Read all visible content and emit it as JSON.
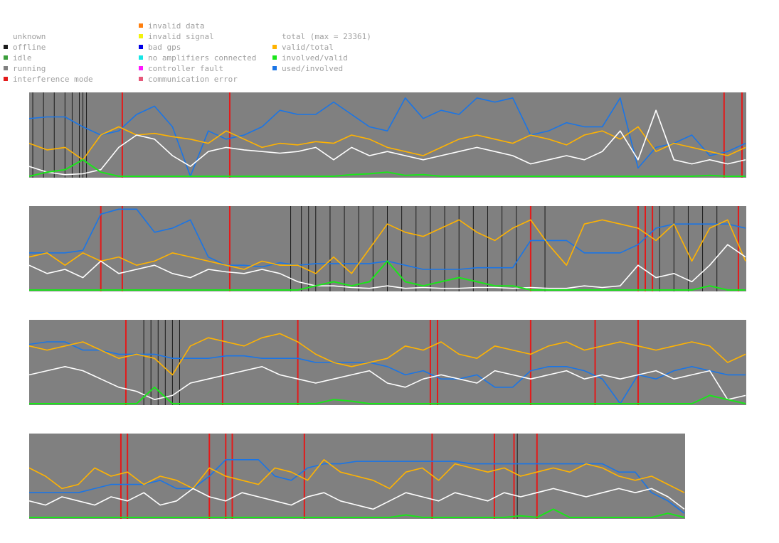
{
  "legend": {
    "status": [
      {
        "label": "unknown",
        "color": "#ffffff"
      },
      {
        "label": "offline",
        "color": "#1a1a1a"
      },
      {
        "label": "idle",
        "color": "#3c9e3c"
      },
      {
        "label": "running",
        "color": "#808080"
      },
      {
        "label": "interference mode",
        "color": "#e31a1a"
      }
    ],
    "errors": [
      {
        "label": "invalid data",
        "color": "#ff7f0e"
      },
      {
        "label": "invalid signal",
        "color": "#f2f20d"
      },
      {
        "label": "bad gps",
        "color": "#0000e6"
      },
      {
        "label": "no amplifiers connected",
        "color": "#17e6e6"
      },
      {
        "label": "controller fault",
        "color": "#ff17ff"
      },
      {
        "label": "communication error",
        "color": "#e6587a"
      }
    ],
    "ratios": [
      {
        "label": "total (max = 23361)",
        "color": "#ffffff"
      },
      {
        "label": "valid/total",
        "color": "#ffb300"
      },
      {
        "label": "involved/valid",
        "color": "#1ae61a"
      },
      {
        "label": "used/involved",
        "color": "#1a75e6"
      }
    ]
  },
  "chart_data": [
    {
      "type": "line",
      "title": "",
      "ylim": [
        0,
        1
      ],
      "total_max": 23361,
      "x": [
        0,
        0.025,
        0.05,
        0.075,
        0.1,
        0.125,
        0.15,
        0.175,
        0.2,
        0.225,
        0.25,
        0.275,
        0.3,
        0.325,
        0.35,
        0.375,
        0.4,
        0.425,
        0.45,
        0.475,
        0.5,
        0.525,
        0.55,
        0.575,
        0.6,
        0.625,
        0.65,
        0.675,
        0.7,
        0.725,
        0.75,
        0.775,
        0.8,
        0.825,
        0.85,
        0.875,
        0.9,
        0.925,
        0.95,
        0.975,
        1
      ],
      "series": [
        {
          "name": "total",
          "values": [
            0.12,
            0.05,
            0.02,
            0.03,
            0.08,
            0.35,
            0.5,
            0.45,
            0.25,
            0.12,
            0.3,
            0.35,
            0.32,
            0.3,
            0.28,
            0.3,
            0.35,
            0.2,
            0.35,
            0.25,
            0.3,
            0.25,
            0.2,
            0.25,
            0.3,
            0.35,
            0.3,
            0.25,
            0.15,
            0.2,
            0.25,
            0.2,
            0.3,
            0.55,
            0.2,
            0.8,
            0.2,
            0.15,
            0.2,
            0.15,
            0.2
          ]
        },
        {
          "name": "valid/total",
          "values": [
            0.4,
            0.32,
            0.35,
            0.2,
            0.5,
            0.6,
            0.5,
            0.52,
            0.48,
            0.45,
            0.4,
            0.55,
            0.45,
            0.35,
            0.4,
            0.38,
            0.42,
            0.4,
            0.5,
            0.45,
            0.35,
            0.3,
            0.25,
            0.35,
            0.45,
            0.5,
            0.45,
            0.4,
            0.5,
            0.45,
            0.38,
            0.5,
            0.55,
            0.45,
            0.6,
            0.3,
            0.4,
            0.35,
            0.3,
            0.25,
            0.35
          ]
        },
        {
          "name": "involved/valid",
          "values": [
            0,
            0.05,
            0.08,
            0.2,
            0.05,
            0,
            0,
            0,
            0,
            0,
            0,
            0,
            0,
            0,
            0,
            0,
            0,
            0,
            0.02,
            0.03,
            0.05,
            0.01,
            0.02,
            0,
            0,
            0,
            0,
            0,
            0,
            0,
            0,
            0,
            0,
            0,
            0,
            0,
            0,
            0,
            0.01,
            0,
            0
          ]
        },
        {
          "name": "used/involved",
          "values": [
            0.7,
            0.72,
            0.72,
            0.6,
            0.5,
            0.55,
            0.75,
            0.85,
            0.6,
            0,
            0.55,
            0.45,
            0.5,
            0.6,
            0.8,
            0.75,
            0.75,
            0.9,
            0.75,
            0.6,
            0.55,
            0.95,
            0.7,
            0.8,
            0.75,
            0.95,
            0.9,
            0.95,
            0.5,
            0.55,
            0.65,
            0.6,
            0.6,
            0.95,
            0.1,
            0.35,
            0.4,
            0.5,
            0.25,
            0.3,
            0.4
          ]
        }
      ],
      "interference_mode_at": [
        0.13,
        0.28,
        0.97,
        0.995
      ],
      "offline_at": [
        0.005,
        0.02,
        0.035,
        0.05,
        0.06,
        0.07,
        0.075,
        0.08
      ]
    },
    {
      "type": "line",
      "title": "",
      "ylim": [
        0,
        1
      ],
      "total_max": 23361,
      "x": [
        0,
        0.025,
        0.05,
        0.075,
        0.1,
        0.125,
        0.15,
        0.175,
        0.2,
        0.225,
        0.25,
        0.275,
        0.3,
        0.325,
        0.35,
        0.375,
        0.4,
        0.425,
        0.45,
        0.475,
        0.5,
        0.525,
        0.55,
        0.575,
        0.6,
        0.625,
        0.65,
        0.675,
        0.7,
        0.725,
        0.75,
        0.775,
        0.8,
        0.825,
        0.85,
        0.875,
        0.9,
        0.925,
        0.95,
        0.975,
        1
      ],
      "series": [
        {
          "name": "total",
          "values": [
            0.3,
            0.2,
            0.25,
            0.15,
            0.35,
            0.2,
            0.25,
            0.3,
            0.2,
            0.15,
            0.25,
            0.22,
            0.2,
            0.25,
            0.2,
            0.1,
            0.05,
            0.05,
            0.03,
            0.02,
            0.05,
            0.02,
            0.03,
            0.02,
            0.02,
            0.03,
            0.03,
            0.02,
            0.03,
            0.02,
            0.02,
            0.05,
            0.03,
            0.05,
            0.3,
            0.15,
            0.2,
            0.1,
            0.3,
            0.55,
            0.4
          ]
        },
        {
          "name": "valid/total",
          "values": [
            0.4,
            0.45,
            0.3,
            0.45,
            0.35,
            0.4,
            0.3,
            0.35,
            0.45,
            0.4,
            0.35,
            0.3,
            0.25,
            0.35,
            0.3,
            0.3,
            0.2,
            0.4,
            0.2,
            0.5,
            0.8,
            0.7,
            0.65,
            0.75,
            0.85,
            0.7,
            0.6,
            0.75,
            0.85,
            0.55,
            0.3,
            0.8,
            0.85,
            0.8,
            0.75,
            0.6,
            0.8,
            0.35,
            0.75,
            0.85,
            0.35
          ]
        },
        {
          "name": "involved/valid",
          "values": [
            0,
            0,
            0,
            0,
            0,
            0,
            0,
            0,
            0,
            0,
            0,
            0,
            0,
            0,
            0,
            0,
            0.05,
            0.1,
            0.05,
            0.1,
            0.35,
            0.1,
            0.05,
            0.1,
            0.15,
            0.1,
            0.05,
            0.05,
            0,
            0,
            0,
            0,
            0,
            0,
            0,
            0,
            0,
            0,
            0.05,
            0,
            0
          ]
        },
        {
          "name": "used/involved",
          "values": [
            0.45,
            0.45,
            0.45,
            0.48,
            0.92,
            0.98,
            0.98,
            0.7,
            0.75,
            0.85,
            0.4,
            0.3,
            0.3,
            0.28,
            0.33,
            0.3,
            0.32,
            0.32,
            0.32,
            0.32,
            0.35,
            0.3,
            0.25,
            0.25,
            0.25,
            0.27,
            0.27,
            0.27,
            0.6,
            0.6,
            0.6,
            0.45,
            0.45,
            0.45,
            0.55,
            0.75,
            0.8,
            0.8,
            0.8,
            0.8,
            0.75
          ]
        }
      ],
      "interference_mode_at": [
        0.1,
        0.13,
        0.28,
        0.7,
        0.85,
        0.86,
        0.87,
        0.99
      ],
      "offline_at": [
        0.365,
        0.38,
        0.39,
        0.4,
        0.42,
        0.44,
        0.46,
        0.48,
        0.5,
        0.52,
        0.54,
        0.56,
        0.58,
        0.6,
        0.62,
        0.64,
        0.66,
        0.68,
        0.7,
        0.72,
        0.88,
        0.9,
        0.92,
        0.94,
        0.96
      ]
    },
    {
      "type": "line",
      "title": "",
      "ylim": [
        0,
        1
      ],
      "total_max": 23361,
      "x": [
        0,
        0.025,
        0.05,
        0.075,
        0.1,
        0.125,
        0.15,
        0.175,
        0.2,
        0.225,
        0.25,
        0.275,
        0.3,
        0.325,
        0.35,
        0.375,
        0.4,
        0.425,
        0.45,
        0.475,
        0.5,
        0.525,
        0.55,
        0.575,
        0.6,
        0.625,
        0.65,
        0.675,
        0.7,
        0.725,
        0.75,
        0.775,
        0.8,
        0.825,
        0.85,
        0.875,
        0.9,
        0.925,
        0.95,
        0.975,
        1
      ],
      "series": [
        {
          "name": "total",
          "values": [
            0.35,
            0.4,
            0.45,
            0.4,
            0.3,
            0.2,
            0.15,
            0.05,
            0.1,
            0.25,
            0.3,
            0.35,
            0.4,
            0.45,
            0.35,
            0.3,
            0.25,
            0.3,
            0.35,
            0.4,
            0.25,
            0.2,
            0.3,
            0.35,
            0.3,
            0.25,
            0.4,
            0.35,
            0.3,
            0.35,
            0.4,
            0.3,
            0.35,
            0.3,
            0.35,
            0.4,
            0.3,
            0.35,
            0.4,
            0.05,
            0.1
          ]
        },
        {
          "name": "valid/total",
          "values": [
            0.7,
            0.65,
            0.7,
            0.75,
            0.65,
            0.55,
            0.6,
            0.55,
            0.35,
            0.7,
            0.8,
            0.75,
            0.7,
            0.8,
            0.85,
            0.75,
            0.6,
            0.5,
            0.45,
            0.5,
            0.55,
            0.7,
            0.65,
            0.75,
            0.6,
            0.55,
            0.7,
            0.65,
            0.6,
            0.7,
            0.75,
            0.65,
            0.7,
            0.75,
            0.7,
            0.65,
            0.7,
            0.75,
            0.7,
            0.5,
            0.6
          ]
        },
        {
          "name": "involved/valid",
          "values": [
            0,
            0,
            0,
            0,
            0,
            0,
            0,
            0.2,
            0,
            0,
            0,
            0,
            0,
            0,
            0,
            0,
            0,
            0.05,
            0.03,
            0,
            0,
            0,
            0,
            0,
            0,
            0,
            0,
            0,
            0,
            0,
            0,
            0,
            0,
            0,
            0,
            0,
            0,
            0,
            0.1,
            0.05,
            0
          ]
        },
        {
          "name": "used/involved",
          "values": [
            0.72,
            0.75,
            0.75,
            0.65,
            0.65,
            0.6,
            0.6,
            0.6,
            0.55,
            0.55,
            0.55,
            0.58,
            0.58,
            0.55,
            0.55,
            0.55,
            0.5,
            0.5,
            0.5,
            0.5,
            0.45,
            0.35,
            0.4,
            0.3,
            0.3,
            0.35,
            0.2,
            0.2,
            0.4,
            0.45,
            0.45,
            0.4,
            0.3,
            0.0,
            0.35,
            0.3,
            0.4,
            0.45,
            0.4,
            0.35,
            0.35
          ]
        }
      ],
      "interference_mode_at": [
        0.135,
        0.27,
        0.375,
        0.56,
        0.57,
        0.7,
        0.79,
        0.85
      ],
      "offline_at": [
        0.16,
        0.17,
        0.18,
        0.19,
        0.2,
        0.21
      ]
    },
    {
      "type": "line",
      "title": "",
      "ylim": [
        0,
        1
      ],
      "total_max": 23361,
      "x": [
        0,
        0.025,
        0.05,
        0.075,
        0.1,
        0.125,
        0.15,
        0.175,
        0.2,
        0.225,
        0.25,
        0.275,
        0.3,
        0.325,
        0.35,
        0.375,
        0.4,
        0.425,
        0.45,
        0.475,
        0.5,
        0.525,
        0.55,
        0.575,
        0.6,
        0.625,
        0.65,
        0.675,
        0.7,
        0.725,
        0.75,
        0.775,
        0.8,
        0.825,
        0.85,
        0.875,
        0.9,
        0.925,
        0.95,
        0.975,
        1
      ],
      "series": [
        {
          "name": "total",
          "values": [
            0.2,
            0.15,
            0.25,
            0.2,
            0.15,
            0.25,
            0.2,
            0.3,
            0.15,
            0.2,
            0.35,
            0.25,
            0.2,
            0.3,
            0.25,
            0.2,
            0.15,
            0.25,
            0.3,
            0.2,
            0.15,
            0.1,
            0.2,
            0.3,
            0.25,
            0.2,
            0.3,
            0.25,
            0.2,
            0.3,
            0.25,
            0.3,
            0.35,
            0.3,
            0.25,
            0.3,
            0.35,
            0.3,
            0.35,
            0.25,
            0.1
          ]
        },
        {
          "name": "valid/total",
          "values": [
            0.6,
            0.5,
            0.35,
            0.4,
            0.6,
            0.5,
            0.55,
            0.4,
            0.5,
            0.45,
            0.35,
            0.6,
            0.5,
            0.45,
            0.4,
            0.6,
            0.55,
            0.45,
            0.7,
            0.55,
            0.5,
            0.45,
            0.35,
            0.55,
            0.6,
            0.45,
            0.65,
            0.6,
            0.55,
            0.6,
            0.5,
            0.55,
            0.6,
            0.55,
            0.65,
            0.6,
            0.5,
            0.45,
            0.5,
            0.4,
            0.3
          ]
        },
        {
          "name": "involved/valid",
          "values": [
            0,
            0,
            0,
            0,
            0,
            0,
            0,
            0,
            0,
            0,
            0,
            0,
            0,
            0,
            0,
            0,
            0,
            0,
            0,
            0,
            0,
            0,
            0,
            0.03,
            0,
            0,
            0,
            0,
            0,
            0,
            0.02,
            0,
            0.1,
            0,
            0,
            0,
            0,
            0,
            0,
            0.05,
            0
          ]
        },
        {
          "name": "used/involved",
          "values": [
            0.3,
            0.3,
            0.3,
            0.3,
            0.35,
            0.4,
            0.4,
            0.4,
            0.45,
            0.35,
            0.35,
            0.5,
            0.7,
            0.7,
            0.7,
            0.5,
            0.45,
            0.6,
            0.65,
            0.65,
            0.68,
            0.68,
            0.68,
            0.68,
            0.68,
            0.68,
            0.68,
            0.65,
            0.65,
            0.65,
            0.65,
            0.65,
            0.65,
            0.65,
            0.65,
            0.65,
            0.55,
            0.55,
            0.3,
            0.2,
            0.05
          ]
        }
      ],
      "interference_mode_at": [
        0.14,
        0.15,
        0.275,
        0.3,
        0.31,
        0.42,
        0.615,
        0.71,
        0.74,
        0.775
      ],
      "offline_at": [
        0.745
      ]
    }
  ]
}
